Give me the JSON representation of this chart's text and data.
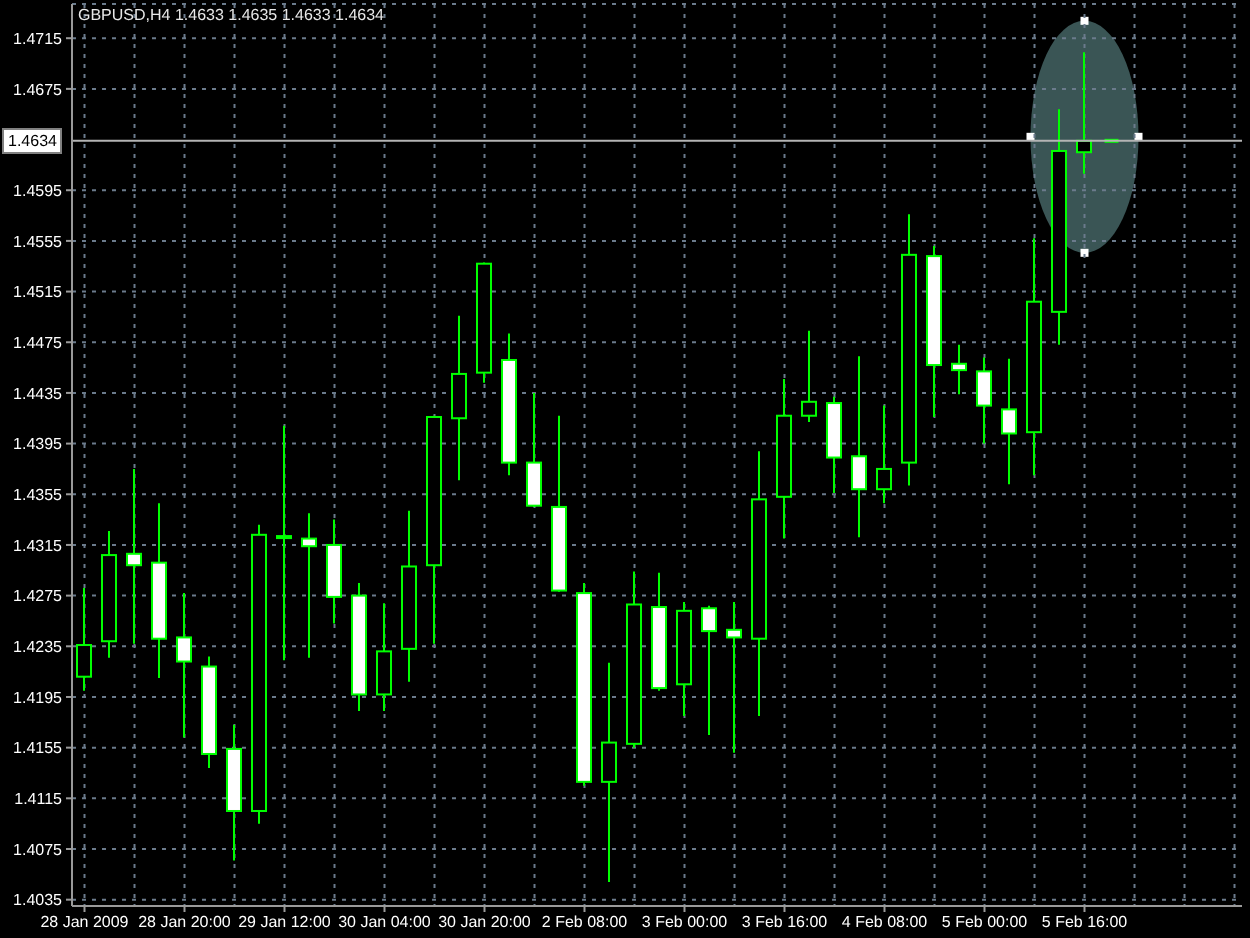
{
  "chart_data": {
    "type": "candlestick",
    "title": "GBPUSD,H4 1.4633 1.4635 1.4633 1.4634",
    "categories": [
      "28 Jan 2009",
      null,
      null,
      null,
      "28 Jan 20:00",
      null,
      null,
      null,
      "29 Jan 12:00",
      null,
      null,
      null,
      "30 Jan 04:00",
      null,
      null,
      null,
      "30 Jan 20:00",
      null,
      null,
      null,
      "2 Feb 08:00",
      null,
      null,
      null,
      "3 Feb 00:00",
      null,
      null,
      null,
      "3 Feb 16:00",
      null,
      null,
      null,
      "4 Feb 08:00",
      null,
      null,
      null,
      "5 Feb 00:00",
      null,
      null,
      null,
      "5 Feb 16:00"
    ],
    "ohlc": [
      [
        1.4211,
        1.4281,
        1.42,
        1.4236
      ],
      [
        1.4239,
        1.4326,
        1.4226,
        1.4307
      ],
      [
        1.4308,
        1.4375,
        1.4237,
        1.4299
      ],
      [
        1.4301,
        1.4348,
        1.421,
        1.4241
      ],
      [
        1.4242,
        1.4277,
        1.4163,
        1.4223
      ],
      [
        1.4219,
        1.4227,
        1.4139,
        1.415
      ],
      [
        1.4154,
        1.4173,
        1.4066,
        1.4105
      ],
      [
        1.4105,
        1.4331,
        1.4095,
        1.4323
      ],
      [
        1.4321,
        1.4409,
        1.4224,
        1.4322
      ],
      [
        1.432,
        1.434,
        1.4226,
        1.4314
      ],
      [
        1.4315,
        1.4335,
        1.4253,
        1.4274
      ],
      [
        1.4275,
        1.4285,
        1.4184,
        1.4197
      ],
      [
        1.4197,
        1.4269,
        1.4184,
        1.4231
      ],
      [
        1.4233,
        1.4342,
        1.4207,
        1.4298
      ],
      [
        1.4299,
        1.4417,
        1.4237,
        1.4416
      ],
      [
        1.4415,
        1.4496,
        1.4366,
        1.445
      ],
      [
        1.4451,
        1.4538,
        1.4443,
        1.4537
      ],
      [
        1.4461,
        1.4482,
        1.437,
        1.438
      ],
      [
        1.438,
        1.4435,
        1.4345,
        1.4346
      ],
      [
        1.4345,
        1.4417,
        1.4278,
        1.4279
      ],
      [
        1.4277,
        1.4285,
        1.4125,
        1.4128
      ],
      [
        1.4128,
        1.4222,
        1.4049,
        1.4159
      ],
      [
        1.4158,
        1.4294,
        1.4155,
        1.4268
      ],
      [
        1.4266,
        1.4293,
        1.42,
        1.4202
      ],
      [
        1.4205,
        1.427,
        1.418,
        1.4263
      ],
      [
        1.4265,
        1.4267,
        1.4165,
        1.4247
      ],
      [
        1.4248,
        1.427,
        1.4151,
        1.4242
      ],
      [
        1.4241,
        1.4389,
        1.418,
        1.4351
      ],
      [
        1.4353,
        1.4446,
        1.432,
        1.4417
      ],
      [
        1.4417,
        1.4484,
        1.4412,
        1.4428
      ],
      [
        1.4427,
        1.4432,
        1.4356,
        1.4384
      ],
      [
        1.4385,
        1.4464,
        1.4321,
        1.4359
      ],
      [
        1.4359,
        1.4425,
        1.4348,
        1.4375
      ],
      [
        1.438,
        1.4576,
        1.4362,
        1.4544
      ],
      [
        1.4543,
        1.4551,
        1.4416,
        1.4457
      ],
      [
        1.4458,
        1.4473,
        1.4434,
        1.4453
      ],
      [
        1.4452,
        1.4463,
        1.4395,
        1.4425
      ],
      [
        1.4422,
        1.4462,
        1.4363,
        1.4403
      ],
      [
        1.4404,
        1.4557,
        1.437,
        1.4507
      ],
      [
        1.4499,
        1.4659,
        1.4473,
        1.4626
      ],
      [
        1.4625,
        1.4704,
        1.4608,
        1.4634
      ]
    ],
    "color": "#00ff00",
    "colors": [
      "#000000",
      "#000000",
      "#ffffff",
      "#ffffff",
      "#ffffff",
      "#ffffff",
      "#ffffff",
      "#000000",
      "#000000",
      "#ffffff",
      "#ffffff",
      "#ffffff",
      "#000000",
      "#000000",
      "#000000",
      "#000000",
      "#000000",
      "#ffffff",
      "#ffffff",
      "#ffffff",
      "#ffffff",
      "#000000",
      "#000000",
      "#ffffff",
      "#000000",
      "#ffffff",
      "#ffffff",
      "#000000",
      "#000000",
      "#000000",
      "#ffffff",
      "#ffffff",
      "#000000",
      "#000000",
      "#ffffff",
      "#ffffff",
      "#ffffff",
      "#ffffff",
      "#000000",
      "#000000",
      "#000000"
    ],
    "ylim": [
      1.403,
      1.4742
    ],
    "yticks": [
      {
        "value": 1.4035,
        "label": "1.4035"
      },
      {
        "value": 1.4075,
        "label": "1.4075"
      },
      {
        "value": 1.4115,
        "label": "1.4115"
      },
      {
        "value": 1.4155,
        "label": "1.4155"
      },
      {
        "value": 1.4195,
        "label": "1.4195"
      },
      {
        "value": 1.4235,
        "label": "1.4235"
      },
      {
        "value": 1.4275,
        "label": "1.4275"
      },
      {
        "value": 1.4315,
        "label": "1.4315"
      },
      {
        "value": 1.4355,
        "label": "1.4355"
      },
      {
        "value": 1.4395,
        "label": "1.4395"
      },
      {
        "value": 1.4435,
        "label": "1.4435"
      },
      {
        "value": 1.4475,
        "label": "1.4475"
      },
      {
        "value": 1.4515,
        "label": "1.4515"
      },
      {
        "value": 1.4555,
        "label": "1.4555"
      },
      {
        "value": 1.4595,
        "label": "1.4595"
      },
      {
        "value": 1.4675,
        "label": "1.4675"
      },
      {
        "value": 1.4715,
        "label": "1.4715"
      }
    ],
    "grid": true,
    "ref_lines": [
      {
        "axis": "y",
        "value": 1.4634,
        "label": "1.4634",
        "color": "#b4b4b4"
      }
    ]
  }
}
